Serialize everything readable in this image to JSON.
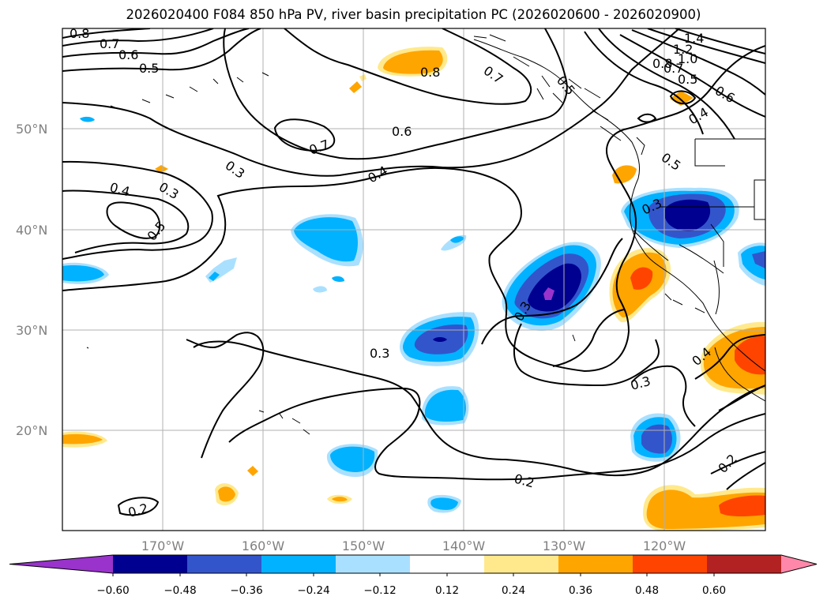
{
  "title": "2026020400 F084 850 hPa PV, river basin precipitation PC (2026020600 - 2026020900)",
  "lat_labels": [
    "50°N",
    "40°N",
    "30°N",
    "20°N"
  ],
  "lon_labels": [
    "170°W",
    "160°W",
    "150°W",
    "140°W",
    "130°W",
    "120°W"
  ],
  "contour_labels": [
    "0.8",
    "0.7",
    "0.6",
    "0.5",
    "0.8",
    "0.7",
    "0.5",
    "1.4",
    "1.2",
    "1.0",
    "0.8",
    "0.7",
    "0.5",
    "0.6",
    "0.4",
    "0.7",
    "0.6",
    "0.4",
    "0.3",
    "0.4",
    "0.3",
    "0.5",
    "0.5",
    "0.3",
    "0.3",
    "0.3",
    "0.3",
    "0.4",
    "0.2",
    "0.2",
    "0.2"
  ],
  "colorbar": {
    "tick_labels": [
      "−0.60",
      "−0.48",
      "−0.36",
      "−0.24",
      "−0.12",
      "0.12",
      "0.24",
      "0.36",
      "0.48",
      "0.60"
    ],
    "colors": [
      "#9933cc",
      "#000090",
      "#3355cc",
      "#00b2ff",
      "#aae0ff",
      "#ffffff",
      "#ffe98c",
      "#ffa500",
      "#ff4400",
      "#b22222",
      "#ff88aa"
    ]
  },
  "colors": {
    "neg_light": "#aae0ff",
    "neg_mid": "#00b2ff",
    "neg_strong": "#3355cc",
    "neg_deep": "#000090",
    "neg_extreme": "#9933cc",
    "pos_light": "#ffe98c",
    "pos_mid": "#ffa500",
    "pos_strong": "#ff4400",
    "grid": "#b0b0b0",
    "contour": "#000000"
  }
}
